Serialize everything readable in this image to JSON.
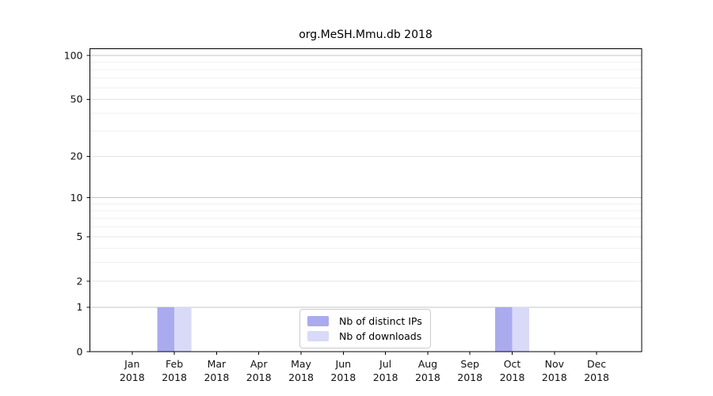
{
  "chart_data": {
    "type": "bar",
    "title": "org.MeSH.Mmu.db 2018",
    "xlabel": "",
    "ylabel": "",
    "x": [
      "Jan",
      "Feb",
      "Mar",
      "Apr",
      "May",
      "Jun",
      "Jul",
      "Aug",
      "Sep",
      "Oct",
      "Nov",
      "Dec"
    ],
    "x_year": "2018",
    "series": [
      {
        "name": "Nb of distinct IPs",
        "color": "#aaaaef",
        "values": [
          0,
          1,
          0,
          0,
          0,
          0,
          0,
          0,
          0,
          1,
          0,
          0
        ]
      },
      {
        "name": "Nb of downloads",
        "color": "#d9d9f8",
        "values": [
          0,
          1,
          0,
          0,
          0,
          0,
          0,
          0,
          0,
          1,
          0,
          0
        ]
      }
    ],
    "y_scale": "log10(value+1)",
    "y_ticks": [
      0,
      1,
      2,
      5,
      10,
      20,
      50,
      100
    ],
    "y_gridline_values": [
      1,
      2,
      3,
      4,
      5,
      6,
      7,
      8,
      9,
      10,
      20,
      30,
      40,
      50,
      60,
      70,
      80,
      90,
      100
    ],
    "ylim": [
      0,
      110
    ],
    "grid": true,
    "legend_position": "bottom-center",
    "colors": {
      "axis": "#000000",
      "tick_label": "#111111",
      "grid_decade": "#c6c6c6",
      "grid_labeled": "#e4e4e4",
      "grid_minor": "#f1f1f1"
    }
  }
}
